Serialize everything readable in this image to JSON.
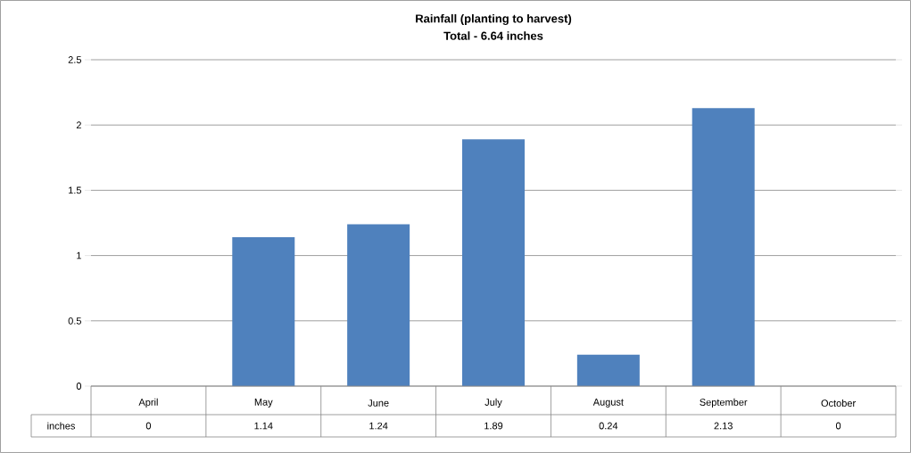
{
  "chart_data": {
    "type": "bar",
    "title": "Rainfall (planting to harvest)",
    "subtitle": "Total - 6.64 inches",
    "categories": [
      "April",
      "May",
      "June",
      "July",
      "August",
      "September",
      "October"
    ],
    "series": [
      {
        "name": "inches",
        "color": "#4f81bd",
        "values": [
          0,
          1.14,
          1.24,
          1.89,
          0.24,
          2.13,
          0
        ]
      }
    ],
    "ylim": [
      0,
      2.5
    ],
    "yticks": [
      0,
      0.5,
      1,
      1.5,
      2,
      2.5
    ],
    "grid": "y",
    "data_labels": true
  }
}
